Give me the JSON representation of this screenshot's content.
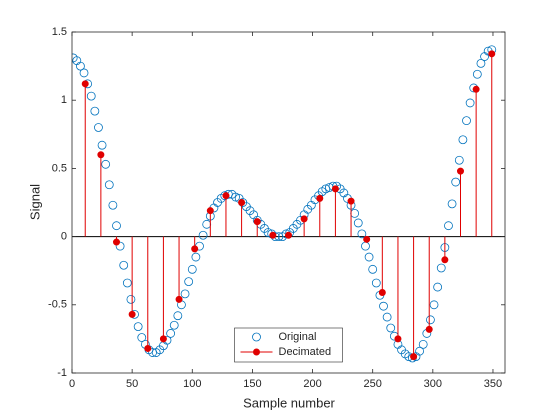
{
  "chart_data": {
    "type": "stem",
    "xlabel": "Sample number",
    "ylabel": "Signal",
    "xlim": [
      0,
      360
    ],
    "xticks": [
      0,
      50,
      100,
      150,
      200,
      250,
      300,
      350
    ],
    "ylim": [
      -1,
      1.5
    ],
    "yticks": [
      -1,
      -0.5,
      0,
      0.5,
      1,
      1.5
    ],
    "legend": "south",
    "series": [
      {
        "name": "Original",
        "type": "scatter",
        "color": "#0072bd",
        "x": [
          1,
          4,
          7,
          10,
          13,
          16,
          19,
          22,
          25,
          28,
          31,
          34,
          37,
          40,
          43,
          46,
          49,
          52,
          55,
          58,
          61,
          64,
          67,
          70,
          73,
          76,
          79,
          82,
          85,
          88,
          91,
          94,
          97,
          100,
          103,
          106,
          109,
          112,
          115,
          118,
          121,
          124,
          127,
          130,
          133,
          136,
          139,
          142,
          145,
          148,
          151,
          154,
          157,
          160,
          163,
          166,
          169,
          172,
          175,
          178,
          181,
          184,
          187,
          190,
          193,
          196,
          199,
          202,
          205,
          208,
          211,
          214,
          217,
          220,
          223,
          226,
          229,
          232,
          235,
          238,
          241,
          244,
          247,
          250,
          253,
          256,
          259,
          262,
          265,
          268,
          271,
          274,
          277,
          280,
          283,
          286,
          289,
          292,
          295,
          298,
          301,
          304,
          307,
          310,
          313,
          316,
          319,
          322,
          325,
          328,
          331,
          334,
          337,
          340,
          343,
          346,
          349
        ],
        "values": [
          1.31,
          1.29,
          1.25,
          1.2,
          1.12,
          1.03,
          0.92,
          0.8,
          0.67,
          0.53,
          0.38,
          0.23,
          0.08,
          -0.07,
          -0.21,
          -0.34,
          -0.46,
          -0.57,
          -0.66,
          -0.74,
          -0.79,
          -0.83,
          -0.85,
          -0.85,
          -0.83,
          -0.8,
          -0.76,
          -0.71,
          -0.65,
          -0.58,
          -0.5,
          -0.42,
          -0.33,
          -0.24,
          -0.15,
          -0.07,
          0.01,
          0.09,
          0.15,
          0.21,
          0.25,
          0.28,
          0.3,
          0.31,
          0.31,
          0.29,
          0.28,
          0.25,
          0.22,
          0.19,
          0.16,
          0.12,
          0.09,
          0.06,
          0.03,
          0.02,
          0.0,
          0.0,
          0.0,
          0.02,
          0.03,
          0.06,
          0.09,
          0.12,
          0.16,
          0.2,
          0.23,
          0.27,
          0.3,
          0.33,
          0.35,
          0.36,
          0.37,
          0.37,
          0.35,
          0.32,
          0.28,
          0.23,
          0.17,
          0.1,
          0.02,
          -0.07,
          -0.15,
          -0.24,
          -0.34,
          -0.43,
          -0.51,
          -0.59,
          -0.67,
          -0.73,
          -0.79,
          -0.83,
          -0.86,
          -0.88,
          -0.89,
          -0.88,
          -0.84,
          -0.79,
          -0.71,
          -0.61,
          -0.5,
          -0.37,
          -0.23,
          -0.08,
          0.08,
          0.24,
          0.4,
          0.56,
          0.71,
          0.85,
          0.98,
          1.09,
          1.19,
          1.27,
          1.32,
          1.36,
          1.37
        ]
      },
      {
        "name": "Decimated",
        "type": "stem",
        "color": "#e00000",
        "x": [
          11,
          24,
          37,
          50,
          63,
          76,
          89,
          102,
          115,
          128,
          141,
          154,
          167,
          180,
          193,
          206,
          219,
          232,
          245,
          258,
          271,
          284,
          297,
          310,
          323,
          336,
          349
        ],
        "values": [
          1.12,
          0.6,
          -0.04,
          -0.57,
          -0.82,
          -0.75,
          -0.46,
          -0.09,
          0.19,
          0.3,
          0.25,
          0.11,
          0.01,
          0.01,
          0.13,
          0.28,
          0.35,
          0.26,
          -0.02,
          -0.41,
          -0.75,
          -0.88,
          -0.68,
          -0.17,
          0.48,
          1.08,
          1.34
        ]
      }
    ]
  }
}
